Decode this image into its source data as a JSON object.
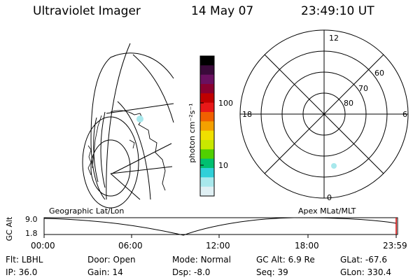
{
  "header": {
    "instrument": "Ultraviolet Imager",
    "date": "14 May 07",
    "time": "23:49:10 UT"
  },
  "colorbar": {
    "unit_label": "photon cm⁻²s⁻¹",
    "ticks": [
      "100",
      "10"
    ],
    "colors": [
      "#000000",
      "#3a0a3a",
      "#6a1060",
      "#8a0030",
      "#c00000",
      "#e81818",
      "#f06000",
      "#f4a000",
      "#f0e000",
      "#c8e800",
      "#50d000",
      "#00c070",
      "#30d0d8",
      "#a8e8ec",
      "#e0f0f4"
    ]
  },
  "polar": {
    "mlt_labels": {
      "top": "12",
      "left": "18",
      "right": "6",
      "bottom": "0"
    },
    "lat_labels": [
      "60",
      "70",
      "80"
    ]
  },
  "timeline": {
    "ylabel": "GC Alt",
    "y_top": "9.0",
    "y_bottom": "1.8",
    "left_title": "Geographic Lat/Lon",
    "right_title": "Apex MLat/MLT",
    "x_ticks": [
      "00:00",
      "06:00",
      "12:00",
      "18:00",
      "23:59"
    ]
  },
  "info": {
    "row1": [
      {
        "key": "Flt:",
        "value": "LBHL"
      },
      {
        "key": "Door:",
        "value": "Open"
      },
      {
        "key": "Mode:",
        "value": "Normal"
      },
      {
        "key": "GC Alt:",
        "value": "6.9 Re"
      },
      {
        "key": "GLat:",
        "value": "-67.6"
      }
    ],
    "row2": [
      {
        "key": "IP:",
        "value": "36.0"
      },
      {
        "key": "Gain:",
        "value": "14"
      },
      {
        "key": "Dsp:",
        "value": "-8.0"
      },
      {
        "key": "Seq:",
        "value": "39"
      },
      {
        "key": "GLon:",
        "value": "330.4"
      }
    ]
  }
}
